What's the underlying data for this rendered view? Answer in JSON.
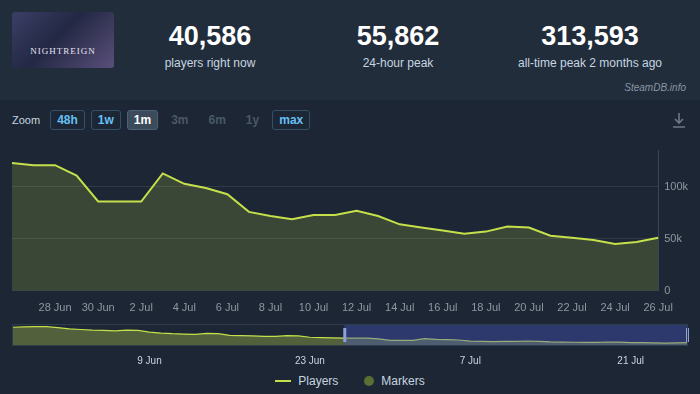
{
  "header": {
    "thumbnail_text": "NIGHTREIGN",
    "stats": [
      {
        "value": "40,586",
        "label": "players right now"
      },
      {
        "value": "55,862",
        "label": "24-hour peak"
      },
      {
        "value": "313,593",
        "label": "all-time peak 2 months ago"
      }
    ],
    "watermark": "SteamDB.info"
  },
  "toolbar": {
    "label": "Zoom",
    "buttons": [
      "48h",
      "1w",
      "1m",
      "3m",
      "6m",
      "1y",
      "max"
    ],
    "active": "1m",
    "disabled": [
      "3m",
      "6m",
      "1y"
    ]
  },
  "chart_data": [
    {
      "type": "line",
      "categories": [
        null,
        null,
        "28 Jun",
        null,
        "30 Jun",
        null,
        "2 Jul",
        null,
        "4 Jul",
        null,
        "6 Jul",
        null,
        "8 Jul",
        null,
        "10 Jul",
        null,
        "12 Jul",
        null,
        "14 Jul",
        null,
        "16 Jul",
        null,
        "18 Jul",
        null,
        "20 Jul",
        null,
        "22 Jul",
        null,
        "24 Jul",
        null,
        "26 Jul"
      ],
      "series": [
        {
          "name": "Players",
          "color": "#c5e04a",
          "values": [
            123000,
            121000,
            121000,
            111000,
            86000,
            86000,
            86000,
            113000,
            103000,
            99000,
            93000,
            76000,
            72000,
            69000,
            73000,
            73000,
            77000,
            72000,
            64000,
            61000,
            58000,
            55000,
            57000,
            62000,
            61000,
            53000,
            51000,
            49000,
            45000,
            47000,
            51000
          ]
        },
        {
          "name": "Markers",
          "color": "#5b6e34",
          "marker": "circle",
          "values": [
            null,
            null,
            null,
            null,
            null,
            null,
            null,
            null,
            null,
            null,
            null,
            null,
            null,
            null,
            null,
            null,
            null,
            null,
            null,
            null,
            null,
            null,
            null,
            null,
            null,
            null,
            null,
            null,
            null,
            null,
            null
          ]
        }
      ],
      "ylim": [
        0,
        135000
      ],
      "yticks": [
        0,
        {
          "value": 50000,
          "label": "50k"
        },
        {
          "value": 100000,
          "label": "100k"
        }
      ],
      "grid": true,
      "legend": "bottom"
    },
    {
      "type": "area",
      "categories": [
        null,
        null,
        null,
        null,
        null,
        null,
        null,
        null,
        null,
        null,
        null,
        null,
        "9 Jun",
        null,
        null,
        null,
        null,
        null,
        null,
        null,
        null,
        null,
        null,
        null,
        null,
        null,
        "23 Jun",
        null,
        null,
        null,
        null,
        null,
        null,
        null,
        null,
        null,
        null,
        null,
        null,
        null,
        "7 Jul",
        null,
        null,
        null,
        null,
        null,
        null,
        null,
        null,
        null,
        null,
        null,
        null,
        null,
        "21 Jul",
        null,
        null,
        null,
        null,
        null
      ],
      "values": [
        290000,
        295000,
        300000,
        298000,
        285000,
        265000,
        255000,
        245000,
        240000,
        235000,
        245000,
        240000,
        215000,
        200000,
        190000,
        185000,
        180000,
        195000,
        190000,
        165000,
        160000,
        155000,
        150000,
        150000,
        160000,
        155000,
        135000,
        130000,
        125000,
        123000,
        121000,
        121000,
        111000,
        86000,
        86000,
        86000,
        113000,
        103000,
        99000,
        93000,
        76000,
        72000,
        69000,
        73000,
        73000,
        77000,
        72000,
        64000,
        61000,
        58000,
        55000,
        57000,
        62000,
        61000,
        53000,
        51000,
        49000,
        45000,
        47000,
        51000
      ],
      "color": "#c5e04a",
      "ylim": [
        0,
        340000
      ],
      "tick_labels": "x"
    }
  ]
}
